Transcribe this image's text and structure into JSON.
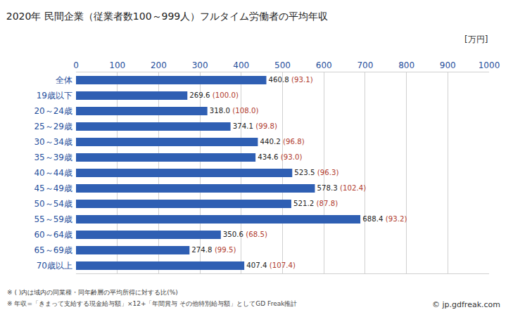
{
  "chart_data": {
    "type": "bar",
    "orientation": "horizontal",
    "title": "2020年 民間企業（従業者数100～999人）フルタイム労働者の平均年収",
    "xlabel": "[万円]",
    "categories": [
      "全体",
      "19歳以下",
      "20～24歳",
      "25～29歳",
      "30～34歳",
      "35～39歳",
      "40～44歳",
      "45～49歳",
      "50～54歳",
      "55～59歳",
      "60～64歳",
      "65～69歳",
      "70歳以上"
    ],
    "values": [
      460.8,
      269.6,
      318.0,
      374.1,
      440.2,
      434.6,
      523.5,
      578.3,
      521.2,
      688.4,
      350.6,
      274.8,
      407.4
    ],
    "value_labels": [
      "460.8",
      "269.6",
      "318.0",
      "374.1",
      "440.2",
      "434.6",
      "523.5",
      "578.3",
      "521.2",
      "688.4",
      "350.6",
      "274.8",
      "407.4"
    ],
    "ratio_labels": [
      "(93.1)",
      "(100.0)",
      "(108.0)",
      "(99.8)",
      "(96.8)",
      "(93.0)",
      "(96.3)",
      "(102.4)",
      "(87.8)",
      "(93.2)",
      "(68.5)",
      "(99.5)",
      "(107.4)"
    ],
    "color": "#2f5fb3",
    "xlim": [
      0,
      1000
    ],
    "xticks": [
      0,
      100,
      200,
      300,
      400,
      500,
      600,
      700,
      800,
      900,
      1000
    ],
    "grid": true,
    "data_labels": true,
    "notes": [
      "※ ( )内は域内の同業種・同年齢層の平均所得に対する比(%)",
      "※ 年収=「きまって支給する現金給与額」×12+「年間賞与 その他特別給与額」としてGD Freak推計"
    ],
    "source": "© jp.gdfreak.com"
  }
}
